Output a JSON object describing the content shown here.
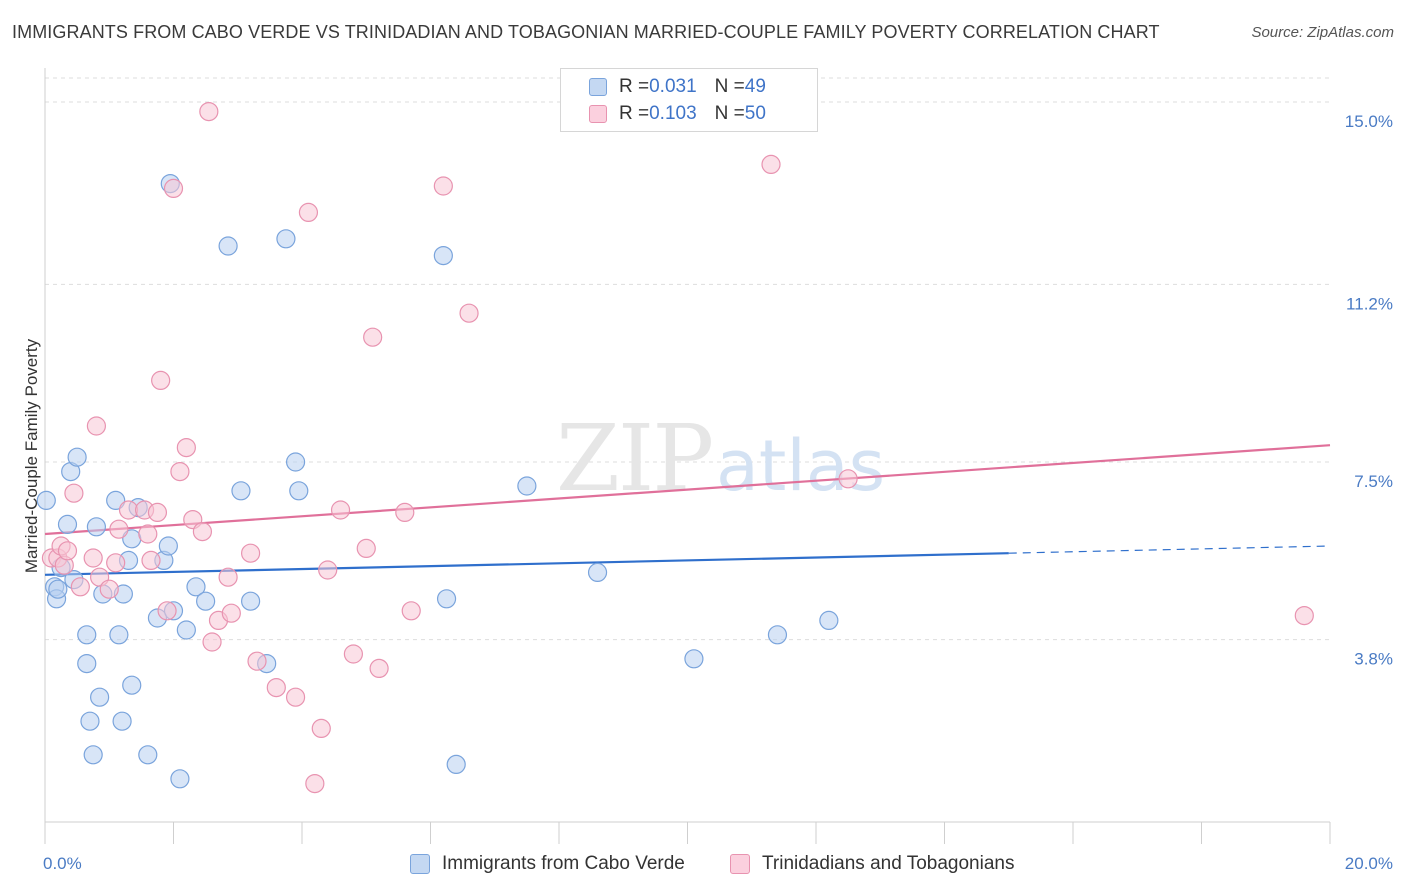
{
  "title": "IMMIGRANTS FROM CABO VERDE VS TRINIDADIAN AND TOBAGONIAN MARRIED-COUPLE FAMILY POVERTY CORRELATION CHART",
  "source": "Source: ZipAtlas.com",
  "watermark": {
    "zip": "ZIP",
    "atlas": "atlas"
  },
  "legend": {
    "series1": {
      "r_label": "R = ",
      "r_value": "0.031",
      "n_label": "N = ",
      "n_value": "49"
    },
    "series2": {
      "r_label": "R = ",
      "r_value": "0.103",
      "n_label": "N = ",
      "n_value": "50"
    }
  },
  "colors": {
    "blue_fill": "#b8d0f0",
    "blue_stroke": "#7aa4dc",
    "blue_line": "#2f6fcc",
    "pink_fill": "#f8c6d6",
    "pink_stroke": "#e893b0",
    "pink_line": "#e0709a",
    "grid": "#dddddd",
    "tick_text": "#4a7bc4"
  },
  "chart_data": {
    "type": "scatter",
    "title": "IMMIGRANTS FROM CABO VERDE VS TRINIDADIAN AND TOBAGONIAN MARRIED-COUPLE FAMILY POVERTY CORRELATION CHART",
    "xlabel": "",
    "ylabel": "Married-Couple Family Poverty",
    "xlim": [
      0,
      20
    ],
    "ylim": [
      0,
      15.5
    ],
    "x_ticks": [
      0,
      20
    ],
    "x_tick_labels": [
      "0.0%",
      "20.0%"
    ],
    "x_minor_ticks": [
      2,
      4,
      6,
      8,
      10,
      12,
      14,
      16,
      18,
      20
    ],
    "y_ticks": [
      3.8,
      7.5,
      11.2,
      15.0
    ],
    "y_tick_labels": [
      "3.8%",
      "7.5%",
      "11.2%",
      "15.0%"
    ],
    "series": [
      {
        "name": "Immigrants from Cabo Verde",
        "color": "blue",
        "trend": {
          "x": [
            0,
            15
          ],
          "y": [
            5.15,
            5.6
          ],
          "dashed_to": [
            20,
            5.75
          ]
        },
        "points": [
          [
            0.02,
            6.7
          ],
          [
            0.15,
            4.9
          ],
          [
            0.18,
            4.65
          ],
          [
            0.2,
            4.85
          ],
          [
            0.25,
            5.3
          ],
          [
            0.35,
            6.2
          ],
          [
            0.4,
            7.3
          ],
          [
            0.45,
            5.05
          ],
          [
            0.5,
            7.6
          ],
          [
            0.65,
            3.3
          ],
          [
            0.65,
            3.9
          ],
          [
            0.7,
            2.1
          ],
          [
            0.75,
            1.4
          ],
          [
            0.8,
            6.15
          ],
          [
            0.85,
            2.6
          ],
          [
            0.9,
            4.75
          ],
          [
            1.1,
            6.7
          ],
          [
            1.15,
            3.9
          ],
          [
            1.2,
            2.1
          ],
          [
            1.22,
            4.75
          ],
          [
            1.3,
            5.45
          ],
          [
            1.35,
            2.85
          ],
          [
            1.35,
            5.9
          ],
          [
            1.45,
            6.55
          ],
          [
            1.6,
            1.4
          ],
          [
            1.75,
            4.25
          ],
          [
            1.85,
            5.45
          ],
          [
            1.92,
            5.75
          ],
          [
            1.95,
            13.3
          ],
          [
            2.0,
            4.4
          ],
          [
            2.1,
            0.9
          ],
          [
            2.2,
            4.0
          ],
          [
            2.35,
            4.9
          ],
          [
            2.5,
            4.6
          ],
          [
            2.85,
            12.0
          ],
          [
            3.05,
            6.9
          ],
          [
            3.2,
            4.6
          ],
          [
            3.45,
            3.3
          ],
          [
            3.75,
            12.15
          ],
          [
            3.9,
            7.5
          ],
          [
            3.95,
            6.9
          ],
          [
            6.2,
            11.8
          ],
          [
            6.25,
            4.65
          ],
          [
            6.4,
            1.2
          ],
          [
            7.5,
            7.0
          ],
          [
            8.6,
            5.2
          ],
          [
            10.1,
            3.4
          ],
          [
            11.4,
            3.9
          ],
          [
            12.2,
            4.2
          ]
        ]
      },
      {
        "name": "Trinidadians and Tobagonians",
        "color": "pink",
        "trend": {
          "x": [
            0,
            20
          ],
          "y": [
            6.0,
            7.85
          ]
        },
        "points": [
          [
            0.1,
            5.5
          ],
          [
            0.2,
            5.5
          ],
          [
            0.25,
            5.75
          ],
          [
            0.3,
            5.35
          ],
          [
            0.35,
            5.65
          ],
          [
            0.45,
            6.85
          ],
          [
            0.55,
            4.9
          ],
          [
            0.75,
            5.5
          ],
          [
            0.8,
            8.25
          ],
          [
            0.85,
            5.1
          ],
          [
            1.0,
            4.85
          ],
          [
            1.1,
            5.4
          ],
          [
            1.15,
            6.1
          ],
          [
            1.3,
            6.5
          ],
          [
            1.55,
            6.5
          ],
          [
            1.6,
            6.0
          ],
          [
            1.65,
            5.45
          ],
          [
            1.75,
            6.45
          ],
          [
            1.8,
            9.2
          ],
          [
            1.9,
            4.4
          ],
          [
            2.0,
            13.2
          ],
          [
            2.1,
            7.3
          ],
          [
            2.2,
            7.8
          ],
          [
            2.3,
            6.3
          ],
          [
            2.45,
            6.05
          ],
          [
            2.55,
            14.8
          ],
          [
            2.6,
            3.75
          ],
          [
            2.7,
            4.2
          ],
          [
            2.85,
            5.1
          ],
          [
            2.9,
            4.35
          ],
          [
            3.2,
            5.6
          ],
          [
            3.3,
            3.35
          ],
          [
            3.6,
            2.8
          ],
          [
            3.9,
            2.6
          ],
          [
            4.1,
            12.7
          ],
          [
            4.2,
            0.8
          ],
          [
            4.3,
            1.95
          ],
          [
            4.4,
            5.25
          ],
          [
            4.6,
            6.5
          ],
          [
            4.8,
            3.5
          ],
          [
            5.0,
            5.7
          ],
          [
            5.1,
            10.1
          ],
          [
            5.2,
            3.2
          ],
          [
            5.6,
            6.45
          ],
          [
            5.7,
            4.4
          ],
          [
            6.2,
            13.25
          ],
          [
            6.6,
            10.6
          ],
          [
            11.3,
            13.7
          ],
          [
            12.5,
            7.15
          ],
          [
            19.6,
            4.3
          ]
        ]
      }
    ]
  },
  "bottom_legend": {
    "item1": "Immigrants from Cabo Verde",
    "item2": "Trinidadians and Tobagonians"
  }
}
